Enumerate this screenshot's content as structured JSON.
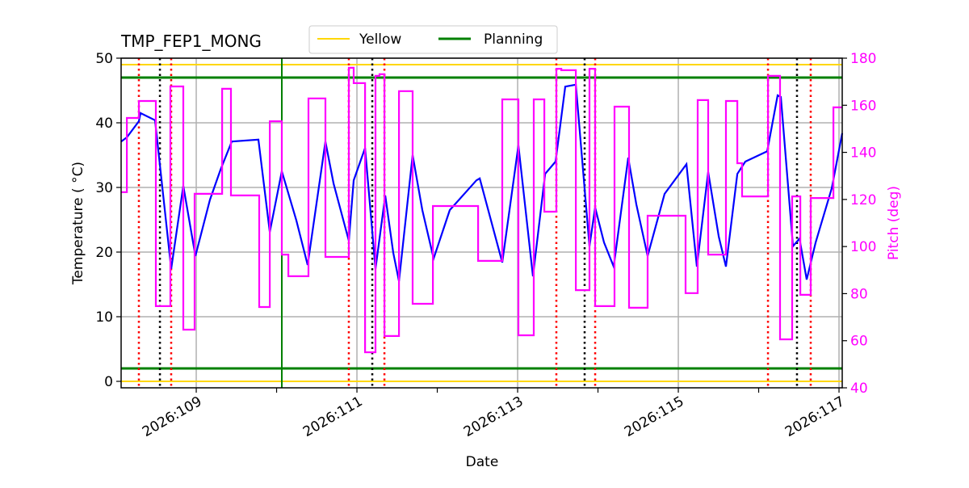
{
  "chart_data": {
    "type": "line",
    "title": "TMP_FEP1_MONG",
    "xlabel": "Date",
    "ylabel": "Temperature ( °C)",
    "ylabel_right": "Pitch (deg)",
    "xlim": [
      108.065,
      117.04
    ],
    "ylim": [
      -1,
      50
    ],
    "ylim_right": [
      40,
      180
    ],
    "x_ticks": [
      109,
      110,
      111,
      112,
      113,
      114,
      115,
      116,
      117
    ],
    "x_tick_labels": [
      {
        "value": 109,
        "label": "2026:109"
      },
      {
        "value": 111,
        "label": "2026:111"
      },
      {
        "value": 113,
        "label": "2026:113"
      },
      {
        "value": 115,
        "label": "2026:115"
      },
      {
        "value": 117,
        "label": "2026:117"
      }
    ],
    "y_ticks": [
      0,
      10,
      20,
      30,
      40,
      50
    ],
    "y_ticks_right": [
      40,
      60,
      80,
      100,
      120,
      140,
      160,
      180
    ],
    "grid": true,
    "legend": {
      "placement": "top-center",
      "entries": [
        {
          "name": "Yellow",
          "color": "#ffd700"
        },
        {
          "name": "Planning",
          "color": "#008000"
        }
      ]
    },
    "colors": {
      "temperature": "#0000ff",
      "pitch": "#ff00ff",
      "yellow": "#ffd700",
      "planning": "#008000",
      "red_marker": "#ff0000",
      "black_marker": "#000000"
    },
    "limits": {
      "yellow": [
        0,
        49
      ],
      "planning": [
        2,
        47
      ]
    },
    "planning_vertical": [
      110.065
    ],
    "red_dotted_days": [
      108.286,
      108.688,
      110.899,
      111.342,
      113.482,
      113.965,
      116.116,
      116.648
    ],
    "black_dotted_days": [
      108.548,
      111.191,
      113.834,
      116.477
    ],
    "series": [
      {
        "axis": "left",
        "points": [
          [
            108.065,
            37.1
          ],
          [
            108.136,
            37.75
          ],
          [
            108.286,
            40.25
          ],
          [
            108.307,
            41.5
          ],
          [
            108.487,
            40.4
          ],
          [
            108.688,
            17.4
          ],
          [
            108.839,
            30.25
          ],
          [
            108.99,
            19.4
          ],
          [
            109.171,
            28.1
          ],
          [
            109.302,
            32.75
          ],
          [
            109.442,
            37.1
          ],
          [
            109.774,
            37.4
          ],
          [
            109.915,
            23.1
          ],
          [
            110.065,
            32.5
          ],
          [
            110.246,
            24.9
          ],
          [
            110.387,
            18
          ],
          [
            110.608,
            37.1
          ],
          [
            110.709,
            30.6
          ],
          [
            110.899,
            21.75
          ],
          [
            110.96,
            31.1
          ],
          [
            111.101,
            36.1
          ],
          [
            111.231,
            17.4
          ],
          [
            111.352,
            28.75
          ],
          [
            111.452,
            19.9
          ],
          [
            111.523,
            15.5
          ],
          [
            111.693,
            35
          ],
          [
            111.814,
            26.5
          ],
          [
            111.955,
            19
          ],
          [
            112.156,
            26.5
          ],
          [
            112.487,
            31.1
          ],
          [
            112.528,
            31.4
          ],
          [
            112.809,
            18.4
          ],
          [
            113.01,
            36.5
          ],
          [
            113.191,
            16.25
          ],
          [
            113.342,
            32.1
          ],
          [
            113.472,
            34
          ],
          [
            113.593,
            45.6
          ],
          [
            113.724,
            45.9
          ],
          [
            113.894,
            20.9
          ],
          [
            113.965,
            26.9
          ],
          [
            114.075,
            21.5
          ],
          [
            114.196,
            17.75
          ],
          [
            114.377,
            34.6
          ],
          [
            114.477,
            27.4
          ],
          [
            114.618,
            19.4
          ],
          [
            114.829,
            29
          ],
          [
            115.101,
            33.6
          ],
          [
            115.231,
            17.75
          ],
          [
            115.372,
            32.4
          ],
          [
            115.503,
            22.4
          ],
          [
            115.593,
            17.75
          ],
          [
            115.734,
            32.1
          ],
          [
            115.834,
            34
          ],
          [
            116.106,
            35.6
          ],
          [
            116.236,
            44.25
          ],
          [
            116.276,
            44
          ],
          [
            116.427,
            20.9
          ],
          [
            116.508,
            22.1
          ],
          [
            116.598,
            15.75
          ],
          [
            116.709,
            21.5
          ],
          [
            116.91,
            29.9
          ],
          [
            117.04,
            38.4
          ]
        ]
      },
      {
        "axis": "right",
        "step": true,
        "points": [
          [
            108.065,
            123.1
          ],
          [
            108.136,
            154.6
          ],
          [
            108.286,
            161.8
          ],
          [
            108.497,
            74.7
          ],
          [
            108.678,
            168
          ],
          [
            108.839,
            64.7
          ],
          [
            108.98,
            122.4
          ],
          [
            109.322,
            167
          ],
          [
            109.432,
            121.7
          ],
          [
            109.784,
            74.3
          ],
          [
            109.915,
            153.2
          ],
          [
            110.065,
            96.6
          ],
          [
            110.146,
            87.4
          ],
          [
            110.397,
            162.9
          ],
          [
            110.608,
            95.6
          ],
          [
            110.899,
            175.9
          ],
          [
            110.96,
            169.4
          ],
          [
            111.101,
            55.1
          ],
          [
            111.231,
            172.5
          ],
          [
            111.281,
            173.2
          ],
          [
            111.342,
            62
          ],
          [
            111.523,
            166
          ],
          [
            111.693,
            75.7
          ],
          [
            111.945,
            117.2
          ],
          [
            112.508,
            93.9
          ],
          [
            112.809,
            162.5
          ],
          [
            113.01,
            62.3
          ],
          [
            113.201,
            162.5
          ],
          [
            113.332,
            114.8
          ],
          [
            113.482,
            175.5
          ],
          [
            113.543,
            174.9
          ],
          [
            113.724,
            81.5
          ],
          [
            113.894,
            175.5
          ],
          [
            113.965,
            74.7
          ],
          [
            114.206,
            159.4
          ],
          [
            114.387,
            74
          ],
          [
            114.618,
            113.1
          ],
          [
            115.09,
            80.2
          ],
          [
            115.241,
            162.2
          ],
          [
            115.372,
            96.6
          ],
          [
            115.593,
            161.8
          ],
          [
            115.734,
            135.4
          ],
          [
            115.794,
            121.3
          ],
          [
            116.116,
            172.5
          ],
          [
            116.266,
            60.6
          ],
          [
            116.417,
            121.3
          ],
          [
            116.518,
            79.5
          ],
          [
            116.648,
            120.6
          ],
          [
            116.93,
            159.1
          ],
          [
            117.04,
            159.1
          ]
        ]
      }
    ]
  }
}
